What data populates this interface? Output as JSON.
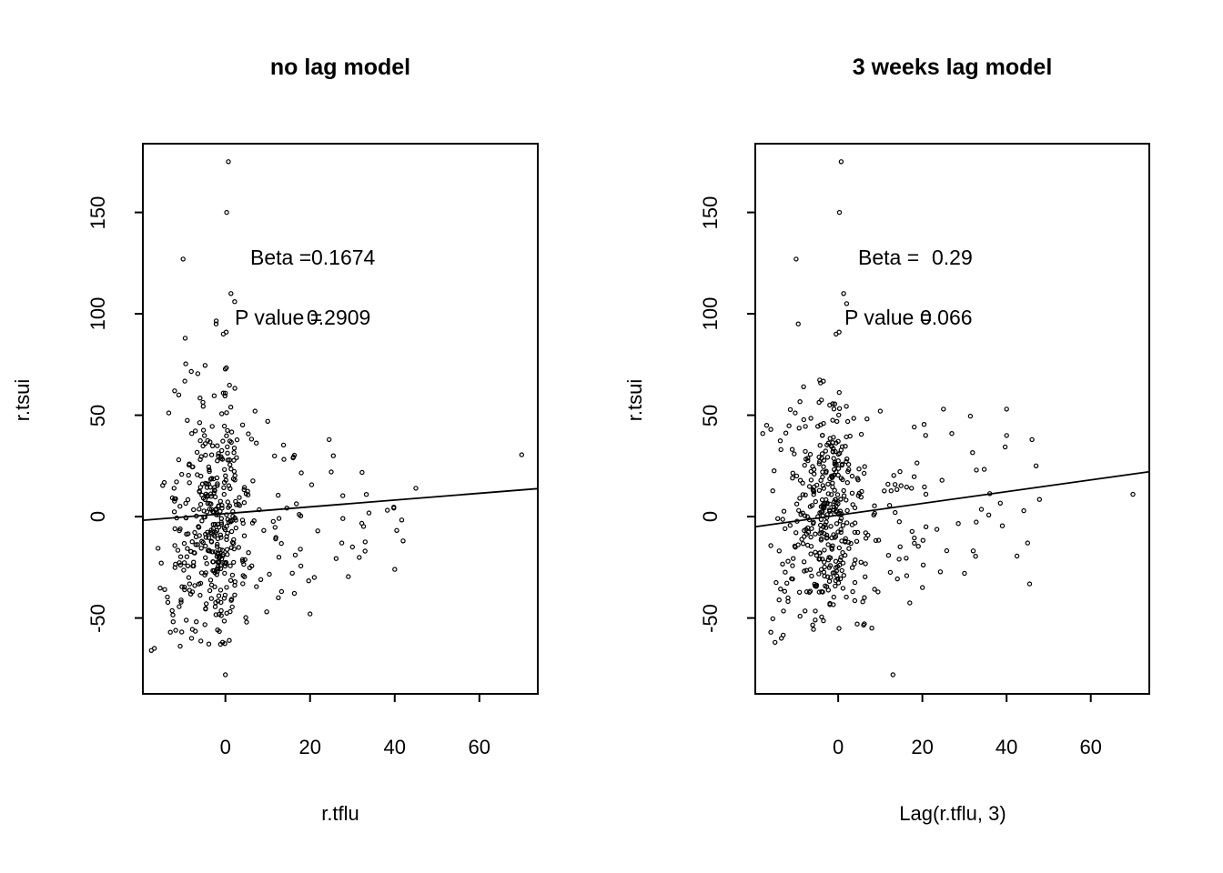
{
  "page": {
    "background": "#ffffff",
    "foreground": "#000000"
  },
  "chart_data": [
    {
      "id": "left-panel",
      "type": "scatter",
      "title": "no lag model",
      "xlabel": "r.tflu",
      "ylabel": "r.tsui",
      "xlim": [
        -19.5,
        73.8
      ],
      "ylim": [
        -87.4,
        183.9
      ],
      "xticks": [
        0,
        20,
        40,
        60
      ],
      "yticks": [
        -50,
        0,
        50,
        100,
        150
      ],
      "grid": false,
      "legend": null,
      "point_color": "#000000",
      "line_color": "#000000",
      "regression": {
        "slope": 0.1674,
        "intercept": 1.46
      },
      "annotations": [
        {
          "label": "Beta =",
          "value": "0.1674"
        },
        {
          "label": "P value =",
          "value": "0.2909"
        }
      ],
      "outlier_points": [
        [
          0.7,
          175
        ],
        [
          0.3,
          150
        ],
        [
          -10,
          127
        ],
        [
          1.3,
          110
        ],
        [
          2.2,
          106
        ],
        [
          -2.2,
          95
        ],
        [
          0.2,
          91
        ],
        [
          -0.5,
          90
        ],
        [
          -9.5,
          88
        ],
        [
          -12,
          62
        ],
        [
          -11,
          60
        ],
        [
          7,
          52
        ],
        [
          10,
          47
        ],
        [
          24.5,
          38
        ],
        [
          25.5,
          30
        ],
        [
          25,
          22
        ],
        [
          45,
          14
        ],
        [
          70,
          30.5
        ],
        [
          30,
          -15
        ],
        [
          33,
          -17
        ],
        [
          27.5,
          -13
        ],
        [
          40,
          -26
        ],
        [
          21,
          -30
        ],
        [
          12.5,
          -40
        ],
        [
          20,
          -48
        ],
        [
          5,
          -52
        ],
        [
          -13,
          -57
        ],
        [
          -8,
          -60
        ],
        [
          -16.8,
          -65
        ],
        [
          -17.5,
          -66
        ],
        [
          0,
          -78
        ]
      ],
      "cloud": {
        "seed": 7,
        "clusters": [
          {
            "n": 290,
            "x_dist": "normal",
            "x_mean": -1.5,
            "x_sd": 3.0,
            "x_min": -8,
            "x_max": 7,
            "y_mean": 0,
            "y_sd": 30,
            "y_min": -70,
            "y_max": 100
          },
          {
            "n": 95,
            "x_dist": "normal",
            "x_mean": -9.5,
            "x_sd": 3.2,
            "x_min": -17.5,
            "x_max": -3,
            "y_mean": -8,
            "y_sd": 29,
            "y_min": -68,
            "y_max": 92
          },
          {
            "n": 45,
            "x_dist": "uniform",
            "x_min": 4,
            "x_max": 18,
            "y_mean": -5,
            "y_sd": 25,
            "y_min": -50,
            "y_max": 48
          },
          {
            "n": 22,
            "x_dist": "uniform",
            "x_min": 16,
            "x_max": 44,
            "y_mean": -2,
            "y_sd": 24,
            "y_min": -48,
            "y_max": 50
          }
        ]
      }
    },
    {
      "id": "right-panel",
      "type": "scatter",
      "title": "3 weeks lag model",
      "xlabel": "Lag(r.tflu, 3)",
      "ylabel": "r.tsui",
      "xlim": [
        -19.7,
        73.9
      ],
      "ylim": [
        -87.4,
        183.9
      ],
      "xticks": [
        0,
        20,
        40,
        60
      ],
      "yticks": [
        -50,
        0,
        50,
        100,
        150
      ],
      "grid": false,
      "legend": null,
      "point_color": "#000000",
      "line_color": "#000000",
      "regression": {
        "slope": 0.29,
        "intercept": 0.71
      },
      "annotations": [
        {
          "label": "Beta =",
          "value": "0.29"
        },
        {
          "label": "P value =",
          "value": "0.066"
        }
      ],
      "outlier_points": [
        [
          0.7,
          175
        ],
        [
          0.3,
          150
        ],
        [
          -10,
          127
        ],
        [
          1.3,
          110
        ],
        [
          2.0,
          105
        ],
        [
          -9.5,
          95
        ],
        [
          0.2,
          91
        ],
        [
          -0.5,
          90
        ],
        [
          -17,
          45
        ],
        [
          -16,
          43
        ],
        [
          10,
          52
        ],
        [
          25,
          53
        ],
        [
          40,
          53
        ],
        [
          27,
          41
        ],
        [
          40,
          40
        ],
        [
          47,
          25
        ],
        [
          70,
          11
        ],
        [
          45,
          -13
        ],
        [
          20,
          -35
        ],
        [
          30,
          -28
        ],
        [
          8,
          -55
        ],
        [
          -13.5,
          -60
        ],
        [
          -15,
          -62
        ],
        [
          -16,
          -57
        ],
        [
          13,
          -78
        ]
      ],
      "cloud": {
        "seed": 13,
        "clusters": [
          {
            "n": 280,
            "x_dist": "normal",
            "x_mean": -2.0,
            "x_sd": 3.2,
            "x_min": -9,
            "x_max": 7,
            "y_mean": 0,
            "y_sd": 30,
            "y_min": -72,
            "y_max": 100
          },
          {
            "n": 90,
            "x_dist": "normal",
            "x_mean": -10,
            "x_sd": 3.4,
            "x_min": -18,
            "x_max": -3.5,
            "y_mean": -5,
            "y_sd": 29,
            "y_min": -65,
            "y_max": 92
          },
          {
            "n": 55,
            "x_dist": "uniform",
            "x_min": 3,
            "x_max": 22,
            "y_mean": -8,
            "y_sd": 27,
            "y_min": -58,
            "y_max": 52
          },
          {
            "n": 28,
            "x_dist": "uniform",
            "x_min": 18,
            "x_max": 48,
            "y_mean": 3,
            "y_sd": 24,
            "y_min": -45,
            "y_max": 55
          }
        ]
      }
    }
  ]
}
